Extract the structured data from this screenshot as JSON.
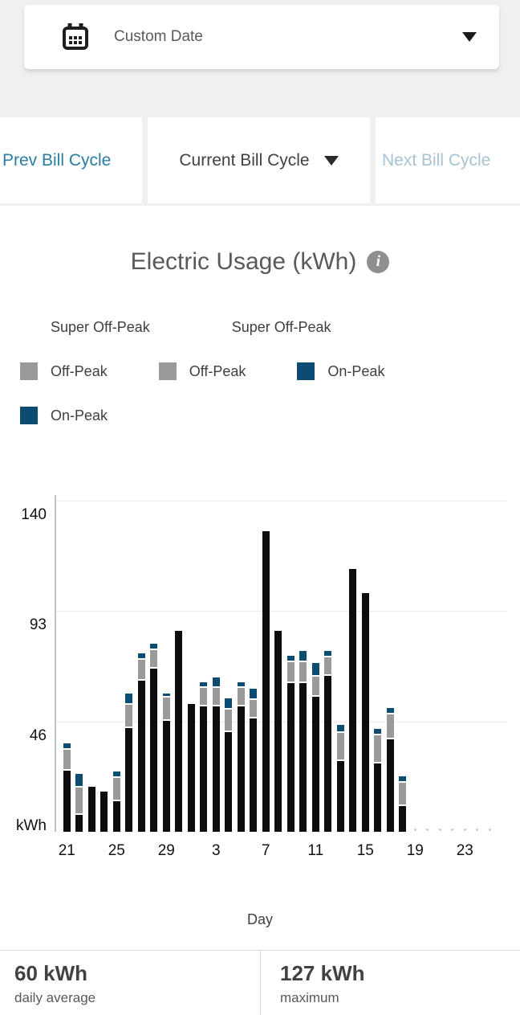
{
  "header": {
    "date_selector_label": "Custom Date"
  },
  "bill_cycle_nav": {
    "prev_label": "Prev Bill Cycle",
    "current_label": "Current Bill Cycle",
    "next_label": "Next Bill Cycle"
  },
  "chart": {
    "title": "Electric Usage (kWh)",
    "info_glyph": "i",
    "legend": [
      {
        "label": "Super Off-Peak",
        "color": "#ffffff"
      },
      {
        "label": "Super Off-Peak",
        "color": "#ffffff"
      },
      {
        "label": "Off-Peak",
        "color": "#9a9a9a"
      },
      {
        "label": "Off-Peak",
        "color": "#9a9a9a"
      },
      {
        "label": "On-Peak",
        "color": "#0d4c72"
      },
      {
        "label": "On-Peak",
        "color": "#0d4c72"
      }
    ]
  },
  "chart_data": {
    "type": "bar",
    "stacked": true,
    "title": "Electric Usage (kWh)",
    "xlabel": "Day",
    "ylabel": "kWh",
    "ylim": [
      0,
      140
    ],
    "ytick_labels": [
      "140",
      "93",
      "46"
    ],
    "yticks": [
      140,
      93.333,
      46.667
    ],
    "y_unit_label": "kWh",
    "grid": true,
    "categories": [
      "21",
      "22",
      "23",
      "24",
      "25",
      "26",
      "27",
      "28",
      "29",
      "30",
      "1",
      "2",
      "3",
      "4",
      "5",
      "6",
      "7",
      "8",
      "9",
      "10",
      "11",
      "12",
      "13",
      "14",
      "15",
      "16",
      "17",
      "18"
    ],
    "x_tick_labels": [
      "21",
      "25",
      "29",
      "3",
      "7",
      "11",
      "15",
      "19",
      "23"
    ],
    "series": [
      {
        "name": "Super Off-Peak",
        "color": "#0d0d0d",
        "values": [
          26,
          7,
          19,
          17,
          13,
          44,
          64,
          69,
          47,
          85,
          54,
          53,
          53,
          42,
          53,
          48,
          127,
          85,
          63,
          63,
          57,
          66,
          30,
          111,
          101,
          29,
          39,
          11
        ]
      },
      {
        "name": "Off-Peak",
        "color": "#9a9a9a",
        "values": [
          8,
          11,
          0,
          0,
          9,
          9,
          8,
          7,
          9,
          0,
          0,
          7,
          7,
          9,
          7,
          7,
          0,
          0,
          8,
          8,
          8,
          7,
          11,
          0,
          0,
          11,
          10,
          9
        ]
      },
      {
        "name": "On-Peak",
        "color": "#0d4c72",
        "values": [
          2,
          5,
          0,
          0,
          2,
          4,
          2,
          2,
          1,
          0,
          0,
          2,
          4,
          4,
          2,
          4,
          0,
          0,
          2,
          4,
          5,
          2,
          3,
          0,
          0,
          2,
          2,
          2
        ]
      }
    ],
    "placeholder_days": [
      "19",
      "20",
      "21",
      "22",
      "23",
      "24",
      "25"
    ]
  },
  "summary": {
    "daily_average": {
      "value": "60 kWh",
      "label": "daily average"
    },
    "maximum": {
      "value": "127 kWh",
      "label": "maximum"
    }
  }
}
